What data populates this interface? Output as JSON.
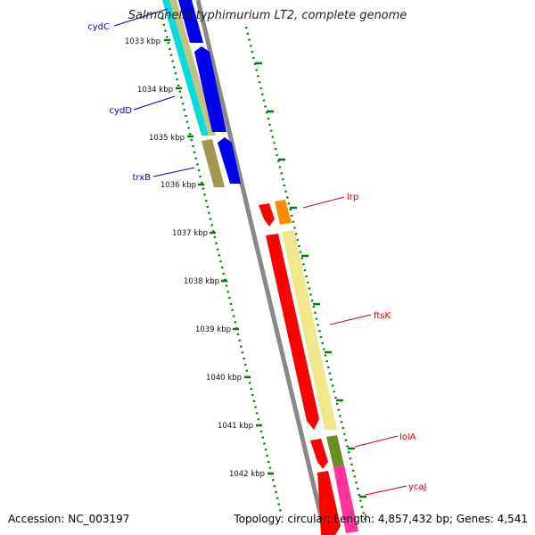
{
  "title": "Salmonella typhimurium LT2, complete genome",
  "footer": {
    "accession": "Accession: NC_003197",
    "topology": "Topology: circular; Length: 4,857,432 bp; Genes: 4,541"
  },
  "kbp_ticks": [
    "1033 kbp",
    "1034 kbp",
    "1035 kbp",
    "1036 kbp",
    "1037 kbp",
    "1038 kbp",
    "1039 kbp",
    "1040 kbp",
    "1041 kbp",
    "1042 kbp"
  ],
  "genes_left": [
    {
      "name": "cydC",
      "color": "#0000cc"
    },
    {
      "name": "cydD",
      "color": "#0000cc"
    },
    {
      "name": "trxB",
      "color": "#0000cc"
    }
  ],
  "genes_right": [
    {
      "name": "lrp",
      "color": "#cc0000"
    },
    {
      "name": "ftsK",
      "color": "#cc0000"
    },
    {
      "name": "lolA",
      "color": "#cc0000"
    },
    {
      "name": "ycaJ",
      "color": "#cc0000"
    }
  ],
  "colors": {
    "backbone": "#888888",
    "tick_dots": "#008000",
    "forward_gene": "#0000ee",
    "forward_gene_light": "#00ffff",
    "reverse_gene": "#ff0000",
    "reverse_gene_light": "#f0e68c",
    "orange_gene": "#ff8c00",
    "olive_gene": "#6b8e23",
    "pink_gene": "#ff3399"
  }
}
